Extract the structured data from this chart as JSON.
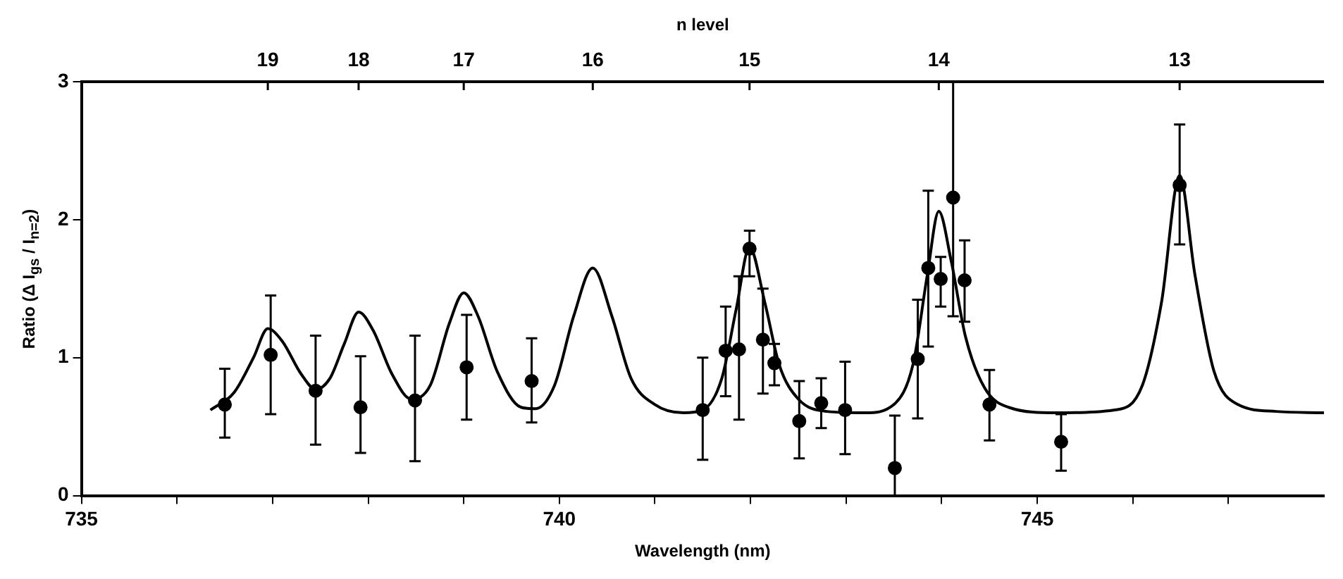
{
  "chart_data": {
    "type": "scatter",
    "xlabel": "Wavelength (nm)",
    "ylabel": "Ratio (Δ I$_{gs}$ / I$_{n=2}$)",
    "annotations": [
      "n level",
      {
        "text": "19",
        "x": 736.95
      },
      {
        "text": "18",
        "x": 737.9
      },
      {
        "text": "17",
        "x": 739.0
      },
      {
        "text": "16",
        "x": 740.35
      },
      {
        "text": "15",
        "x": 741.99
      },
      {
        "text": "14",
        "x": 743.97
      },
      {
        "text": "13",
        "x": 746.49
      }
    ],
    "xlim": [
      735,
      748
    ],
    "xticks": [
      735,
      {
        "value": 736,
        "label": null
      },
      {
        "value": 737,
        "label": null
      },
      {
        "value": 738,
        "label": null
      },
      {
        "value": 739,
        "label": null
      },
      740,
      {
        "value": 741,
        "label": null
      },
      {
        "value": 742,
        "label": null
      },
      {
        "value": 743,
        "label": null
      },
      {
        "value": 744,
        "label": null
      },
      745,
      {
        "value": 746,
        "label": null
      },
      {
        "value": 747,
        "label": null
      }
    ],
    "ylim": [
      0,
      3
    ],
    "yticks": [
      0,
      1,
      2,
      3
    ],
    "series": [
      {
        "type": "line",
        "color": "#000000",
        "marker": "none",
        "line_style": "solid",
        "x": [
          736.35,
          736.6,
          736.8,
          736.95,
          737.1,
          737.3,
          737.45,
          737.6,
          737.75,
          737.9,
          738.05,
          738.25,
          738.45,
          738.65,
          738.85,
          739.0,
          739.15,
          739.35,
          739.6,
          739.75,
          739.95,
          740.15,
          740.35,
          740.55,
          740.75,
          741.0,
          741.3,
          741.5,
          741.7,
          741.85,
          741.99,
          742.15,
          742.3,
          742.5,
          742.8,
          743.2,
          743.5,
          743.7,
          743.85,
          743.97,
          744.1,
          744.25,
          744.45,
          744.7,
          745.2,
          745.8,
          746.1,
          746.3,
          746.49,
          746.65,
          746.85,
          747.1,
          747.5,
          748
        ],
        "values": [
          0.62,
          0.75,
          1.0,
          1.21,
          1.12,
          0.88,
          0.77,
          0.85,
          1.1,
          1.33,
          1.2,
          0.88,
          0.7,
          0.8,
          1.25,
          1.47,
          1.3,
          0.9,
          0.64,
          0.63,
          0.8,
          1.3,
          1.65,
          1.3,
          0.85,
          0.66,
          0.6,
          0.62,
          0.85,
          1.35,
          1.8,
          1.4,
          0.95,
          0.7,
          0.61,
          0.6,
          0.66,
          0.95,
          1.6,
          2.06,
          1.7,
          1.15,
          0.78,
          0.64,
          0.6,
          0.62,
          0.8,
          1.4,
          2.32,
          1.6,
          0.9,
          0.66,
          0.61,
          0.6
        ]
      },
      {
        "type": "scatter",
        "color": "#000000",
        "marker": "circle",
        "x": [
          736.5,
          736.98,
          737.45,
          737.92,
          738.49,
          739.03,
          739.71,
          741.5,
          741.74,
          741.88,
          741.99,
          742.13,
          742.25,
          742.51,
          742.74,
          742.99,
          743.51,
          743.75,
          743.86,
          743.99,
          744.12,
          744.24,
          744.5,
          745.25,
          746.49
        ],
        "values": [
          0.66,
          1.02,
          0.76,
          0.64,
          0.69,
          0.93,
          0.83,
          0.62,
          1.05,
          1.06,
          1.79,
          1.13,
          0.96,
          0.54,
          0.67,
          0.62,
          0.2,
          0.99,
          1.65,
          1.57,
          2.16,
          1.56,
          0.66,
          0.39,
          2.25
        ],
        "errors": [
          [
            0.42,
            0.92
          ],
          [
            0.59,
            1.45
          ],
          [
            0.37,
            1.16
          ],
          [
            0.31,
            1.01
          ],
          [
            0.25,
            1.16
          ],
          [
            0.55,
            1.31
          ],
          [
            0.53,
            1.14
          ],
          [
            0.26,
            1.0
          ],
          [
            0.72,
            1.37
          ],
          [
            0.55,
            1.59
          ],
          [
            1.59,
            1.92
          ],
          [
            0.74,
            1.5
          ],
          [
            0.8,
            1.1
          ],
          [
            0.27,
            0.83
          ],
          [
            0.49,
            0.85
          ],
          [
            0.3,
            0.97
          ],
          [
            0,
            0.58
          ],
          [
            0.56,
            1.42
          ],
          [
            1.08,
            2.21
          ],
          [
            1.37,
            1.73
          ],
          [
            1.3,
            3
          ],
          [
            1.26,
            1.85
          ],
          [
            0.4,
            0.91
          ],
          [
            0.18,
            0.59
          ],
          [
            1.82,
            2.69
          ]
        ]
      }
    ]
  }
}
